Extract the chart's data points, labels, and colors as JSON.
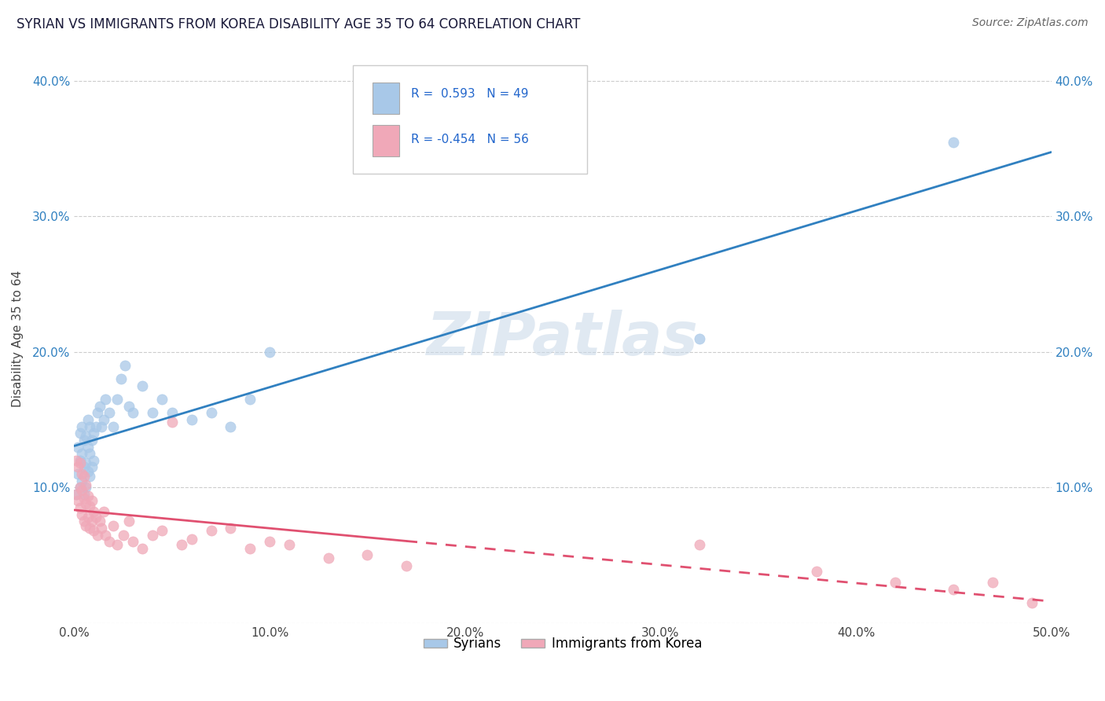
{
  "title": "SYRIAN VS IMMIGRANTS FROM KOREA DISABILITY AGE 35 TO 64 CORRELATION CHART",
  "source": "Source: ZipAtlas.com",
  "ylabel": "Disability Age 35 to 64",
  "xlim": [
    0.0,
    0.5
  ],
  "ylim": [
    0.0,
    0.42
  ],
  "x_ticks": [
    0.0,
    0.1,
    0.2,
    0.3,
    0.4,
    0.5
  ],
  "x_tick_labels": [
    "0.0%",
    "10.0%",
    "20.0%",
    "30.0%",
    "40.0%",
    "50.0%"
  ],
  "y_ticks": [
    0.0,
    0.1,
    0.2,
    0.3,
    0.4
  ],
  "y_tick_labels_left": [
    "",
    "10.0%",
    "20.0%",
    "30.0%",
    "40.0%"
  ],
  "y_tick_labels_right": [
    "",
    "10.0%",
    "20.0%",
    "30.0%",
    "40.0%"
  ],
  "color_syrian": "#A8C8E8",
  "color_korea": "#F0A8B8",
  "line_color_syrian": "#3080C0",
  "line_color_korea": "#E05070",
  "watermark": "ZIPatlas",
  "background_color": "#FFFFFF",
  "syrians_x": [
    0.001,
    0.002,
    0.002,
    0.003,
    0.003,
    0.003,
    0.004,
    0.004,
    0.004,
    0.005,
    0.005,
    0.005,
    0.006,
    0.006,
    0.006,
    0.007,
    0.007,
    0.007,
    0.008,
    0.008,
    0.008,
    0.009,
    0.009,
    0.01,
    0.01,
    0.011,
    0.012,
    0.013,
    0.014,
    0.015,
    0.016,
    0.018,
    0.02,
    0.022,
    0.024,
    0.026,
    0.028,
    0.03,
    0.035,
    0.04,
    0.045,
    0.05,
    0.06,
    0.07,
    0.08,
    0.09,
    0.1,
    0.32,
    0.45
  ],
  "syrians_y": [
    0.095,
    0.11,
    0.13,
    0.1,
    0.12,
    0.14,
    0.105,
    0.125,
    0.145,
    0.095,
    0.115,
    0.135,
    0.1,
    0.118,
    0.138,
    0.112,
    0.13,
    0.15,
    0.108,
    0.125,
    0.145,
    0.115,
    0.135,
    0.12,
    0.14,
    0.145,
    0.155,
    0.16,
    0.145,
    0.15,
    0.165,
    0.155,
    0.145,
    0.165,
    0.18,
    0.19,
    0.16,
    0.155,
    0.175,
    0.155,
    0.165,
    0.155,
    0.15,
    0.155,
    0.145,
    0.165,
    0.2,
    0.21,
    0.355
  ],
  "korea_x": [
    0.001,
    0.001,
    0.002,
    0.002,
    0.003,
    0.003,
    0.003,
    0.004,
    0.004,
    0.004,
    0.005,
    0.005,
    0.005,
    0.006,
    0.006,
    0.006,
    0.007,
    0.007,
    0.008,
    0.008,
    0.009,
    0.009,
    0.01,
    0.01,
    0.011,
    0.012,
    0.013,
    0.014,
    0.015,
    0.016,
    0.018,
    0.02,
    0.022,
    0.025,
    0.028,
    0.03,
    0.035,
    0.04,
    0.045,
    0.05,
    0.055,
    0.06,
    0.07,
    0.08,
    0.09,
    0.1,
    0.11,
    0.13,
    0.15,
    0.17,
    0.32,
    0.38,
    0.42,
    0.45,
    0.47,
    0.49
  ],
  "korea_y": [
    0.095,
    0.12,
    0.09,
    0.115,
    0.085,
    0.1,
    0.118,
    0.08,
    0.098,
    0.11,
    0.075,
    0.092,
    0.108,
    0.072,
    0.088,
    0.102,
    0.078,
    0.094,
    0.07,
    0.086,
    0.075,
    0.09,
    0.068,
    0.082,
    0.078,
    0.065,
    0.075,
    0.07,
    0.082,
    0.065,
    0.06,
    0.072,
    0.058,
    0.065,
    0.075,
    0.06,
    0.055,
    0.065,
    0.068,
    0.148,
    0.058,
    0.062,
    0.068,
    0.07,
    0.055,
    0.06,
    0.058,
    0.048,
    0.05,
    0.042,
    0.058,
    0.038,
    0.03,
    0.025,
    0.03,
    0.015
  ]
}
